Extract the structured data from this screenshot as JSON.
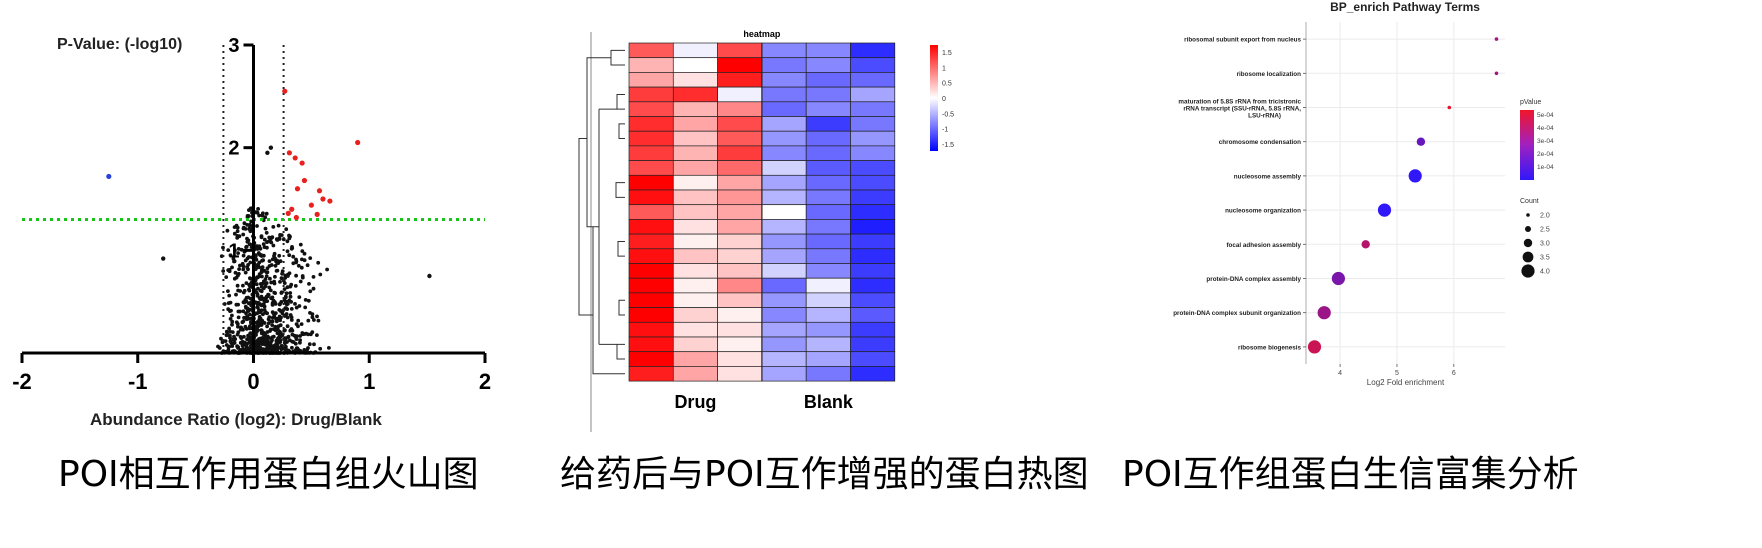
{
  "captions": {
    "volcano": "POI相互作用蛋白组火山图",
    "heatmap": "给药后与POI互作增强的蛋白热图",
    "enrich": "POI互作组蛋白生信富集分析"
  },
  "chart_data": [
    {
      "type": "scatter",
      "ylabel": "P-Value: (-log10)",
      "xlabel": "Abundance Ratio (log2): Drug/Blank",
      "xlim": [
        -2,
        2
      ],
      "ylim": [
        0,
        3
      ],
      "xticks": [
        "-2",
        "-1",
        "0",
        "1",
        "2"
      ],
      "yticks": [
        "1",
        "2",
        "3"
      ],
      "fc_cutoffs": [
        -0.26,
        0.26
      ],
      "p_cutoff": 1.3,
      "colors": {
        "up": "#e8201e",
        "down": "#2a3fdd",
        "ns": "#111111",
        "cutoff": "#19c419"
      },
      "up_points": [
        [
          0.27,
          2.55
        ],
        [
          0.31,
          1.95
        ],
        [
          0.36,
          1.9
        ],
        [
          0.42,
          1.85
        ],
        [
          0.44,
          1.68
        ],
        [
          0.38,
          1.6
        ],
        [
          0.57,
          1.58
        ],
        [
          0.6,
          1.5
        ],
        [
          0.66,
          1.48
        ],
        [
          0.5,
          1.44
        ],
        [
          0.33,
          1.4
        ],
        [
          0.3,
          1.36
        ],
        [
          0.55,
          1.35
        ],
        [
          0.9,
          2.05
        ],
        [
          0.37,
          1.32
        ]
      ],
      "down_points": [
        [
          -1.25,
          1.72
        ]
      ],
      "ns_highlights": [
        [
          1.52,
          0.75
        ],
        [
          0.15,
          2.0
        ],
        [
          -0.78,
          0.92
        ],
        [
          0.12,
          1.95
        ]
      ]
    },
    {
      "type": "heatmap",
      "title": "heatmap",
      "groups": [
        "Drug",
        "Blank"
      ],
      "legend_ticks": [
        "1.5",
        "1",
        "0.5",
        "0",
        "-0.5",
        "-1",
        "-1.5"
      ],
      "values": [
        [
          1.1,
          -0.1,
          1.2,
          -0.8,
          -0.8,
          -1.4
        ],
        [
          0.5,
          0.0,
          1.7,
          -0.9,
          -0.8,
          -1.2
        ],
        [
          0.6,
          0.2,
          1.5,
          -0.8,
          -1.0,
          -1.0
        ],
        [
          1.3,
          1.4,
          -0.1,
          -0.9,
          -0.9,
          -0.6
        ],
        [
          1.2,
          0.5,
          0.8,
          -1.0,
          -0.8,
          -0.9
        ],
        [
          1.4,
          0.6,
          1.2,
          -0.6,
          -1.3,
          -0.9
        ],
        [
          1.4,
          0.4,
          1.1,
          -0.7,
          -1.0,
          -0.7
        ],
        [
          1.3,
          0.5,
          1.3,
          -0.8,
          -1.0,
          -0.8
        ],
        [
          1.2,
          0.6,
          1.0,
          -0.3,
          -1.1,
          -1.2
        ],
        [
          1.7,
          0.1,
          0.6,
          -0.6,
          -1.0,
          -1.2
        ],
        [
          1.6,
          0.4,
          0.7,
          -0.5,
          -0.9,
          -1.3
        ],
        [
          1.1,
          0.4,
          0.6,
          0.0,
          -1.0,
          -1.4
        ],
        [
          1.6,
          0.2,
          0.6,
          -0.5,
          -0.9,
          -1.5
        ],
        [
          1.5,
          0.1,
          0.3,
          -0.7,
          -1.0,
          -1.3
        ],
        [
          1.6,
          0.4,
          0.3,
          -0.6,
          -0.9,
          -1.4
        ],
        [
          1.7,
          0.2,
          0.4,
          -0.3,
          -0.8,
          -1.3
        ],
        [
          1.7,
          0.1,
          0.8,
          -1.0,
          -0.1,
          -1.4
        ],
        [
          1.8,
          0.1,
          0.4,
          -0.7,
          -0.3,
          -1.2
        ],
        [
          1.7,
          0.3,
          0.1,
          -0.8,
          -0.5,
          -1.1
        ],
        [
          1.6,
          0.2,
          0.2,
          -0.6,
          -0.7,
          -1.3
        ],
        [
          1.6,
          0.3,
          0.1,
          -0.7,
          -0.5,
          -1.3
        ],
        [
          1.7,
          0.6,
          0.2,
          -0.5,
          -0.6,
          -1.2
        ],
        [
          1.5,
          0.6,
          0.2,
          -0.6,
          -0.9,
          -1.4
        ]
      ],
      "colors": {
        "high": "#ff0000",
        "mid": "#ffffff",
        "low": "#0000ff"
      }
    },
    {
      "type": "scatter",
      "title": "BP_enrich Pathway Terms",
      "xlabel": "Log2 Fold enrichment",
      "xlim": [
        3.4,
        6.9
      ],
      "xticks": [
        "4",
        "5",
        "6"
      ],
      "terms": [
        "ribosomal subunit export from nucleus",
        "ribosome localization",
        "maturation of 5.8S rRNA from tricistronic",
        "chromosome condensation",
        "nucleosome assembly",
        "nucleosome organization",
        "focal adhesion assembly",
        "protein-DNA complex assembly",
        "protein-DNA complex subunit organization",
        "ribosome biogenesis"
      ],
      "term3_extra": [
        "rRNA transcript (SSU-rRNA, 5.8S rRNA,",
        "LSU-rRNA)"
      ],
      "x": [
        6.75,
        6.75,
        5.92,
        5.42,
        5.32,
        4.78,
        4.45,
        3.97,
        3.72,
        3.55
      ],
      "count": [
        2,
        2,
        2,
        3,
        4,
        4,
        3,
        4,
        4,
        4
      ],
      "pvalue": [
        0.0003,
        0.0003,
        0.00048,
        0.00015,
        1e-05,
        1e-05,
        0.00035,
        0.0002,
        0.00028,
        0.0004
      ],
      "legend": {
        "pvalue_title": "pValue",
        "pvalue_ticks": [
          "5e-04",
          "4e-04",
          "3e-04",
          "2e-04",
          "1e-04"
        ],
        "count_title": "Count",
        "count_ticks": [
          "2.0",
          "2.5",
          "3.0",
          "3.5",
          "4.0"
        ]
      }
    }
  ]
}
